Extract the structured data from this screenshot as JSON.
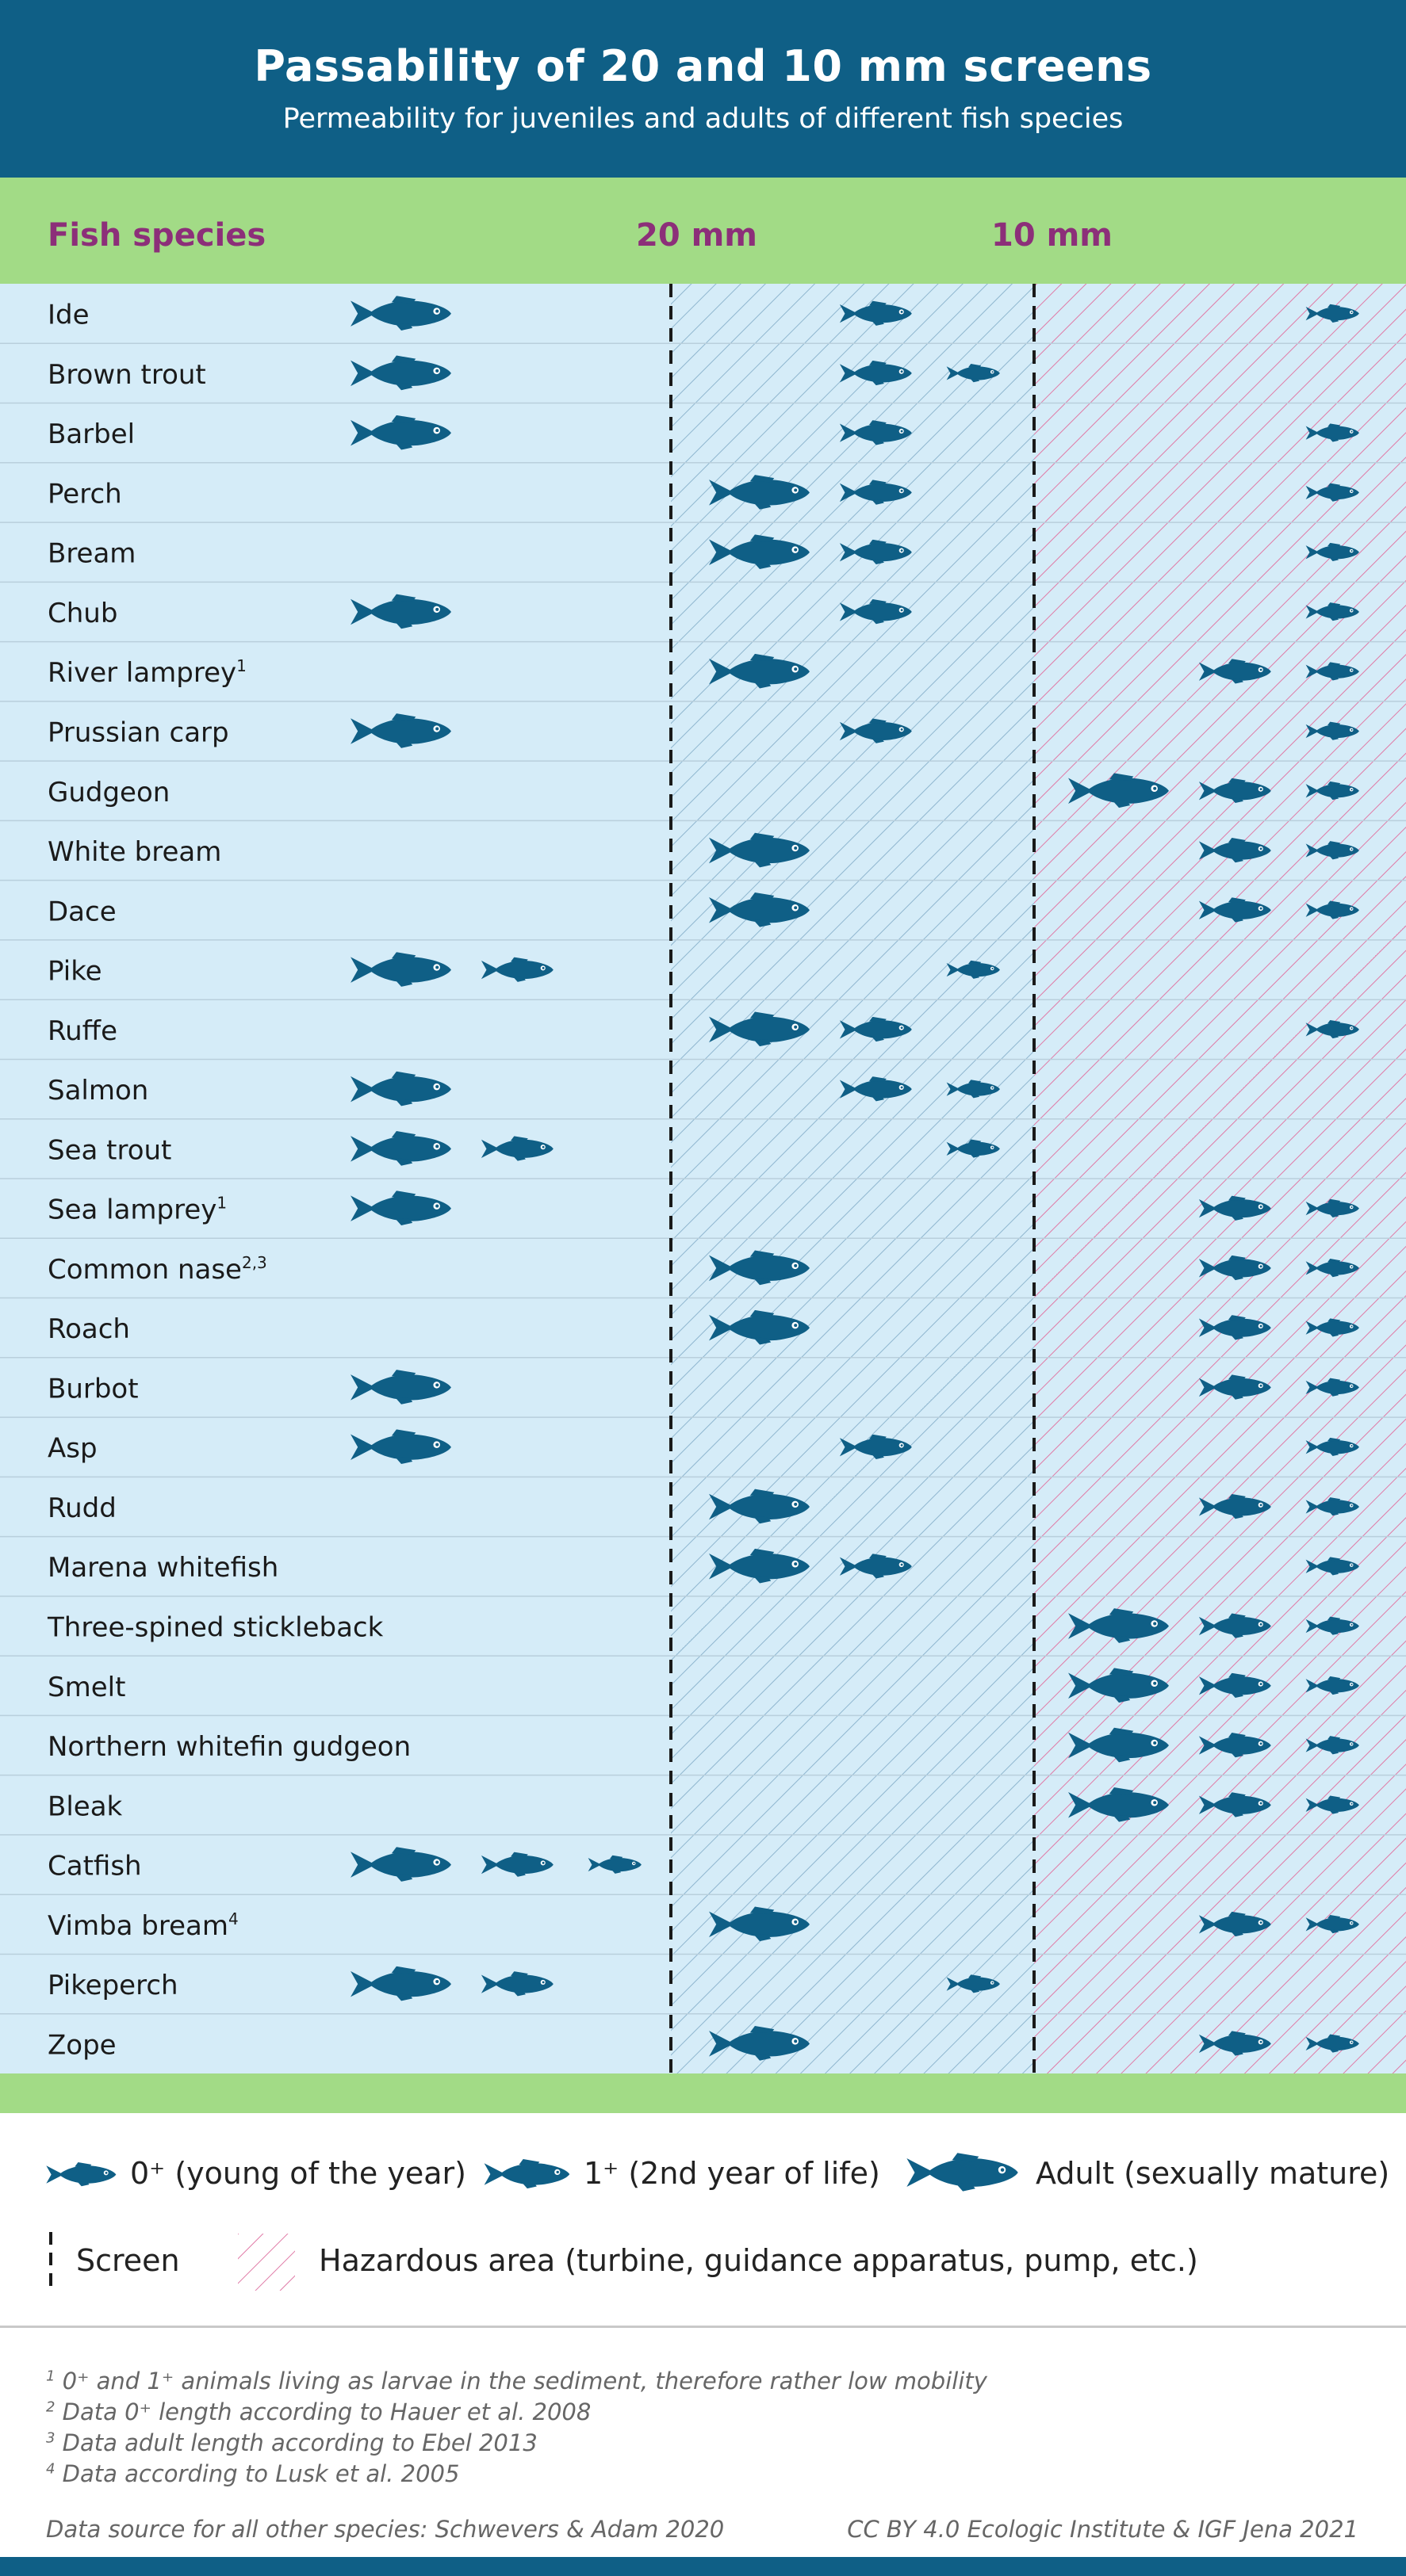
{
  "header": {
    "title": "Passability of 20 and 10 mm screens",
    "subtitle": "Permeability for juveniles and adults of different fish species"
  },
  "columns": {
    "species": "Fish species",
    "screen20": "20 mm",
    "screen10": "10 mm"
  },
  "legend": {
    "stage0": "0⁺ (young of the year)",
    "stage1": "1⁺ (2nd year of life)",
    "adult": "Adult (sexually mature)",
    "screen": "Screen",
    "hazard": "Hazardous area (turbine, guidance apparatus, pump, etc.)"
  },
  "footnotes": {
    "n1": "0⁺ and 1⁺ animals living as larvae in the sediment, therefore rather low mobility",
    "n2": "Data 0⁺ length according to Hauer et al. 2008",
    "n3": "Data adult length according to Ebel 2013",
    "n4": "Data according to Lusk et al. 2005",
    "source": "Data source for all other species: Schwevers & Adam 2020",
    "credit": "CC BY 4.0  Ecologic Institute & IGF Jena 2021"
  },
  "colors": {
    "header_bg": "#0f5f86",
    "band_green": "#a2db86",
    "species_header": "#8c2f79",
    "panel_bg": "#d5ecf8",
    "fish": "#0f5f86",
    "hatch_blue": "#8fb6cf",
    "hatch_pink": "#e07aa6"
  },
  "icons": {
    "fish": "fish-icon",
    "screen": "dashed-line-icon",
    "hazard": "hatched-square-icon"
  },
  "chart_data": {
    "type": "table",
    "zones": [
      "retained by 20 mm screen",
      "passes 20 mm, retained by 10 mm screen",
      "passes 10 mm screen (hazardous area)"
    ],
    "stages": [
      "adult",
      "1+",
      "0+"
    ],
    "rows": [
      {
        "species": "Ide",
        "sup": "",
        "retained_20": [
          "adult"
        ],
        "between": [
          "1+"
        ],
        "passes_10": [
          "0+"
        ]
      },
      {
        "species": "Brown trout",
        "sup": "",
        "retained_20": [
          "adult"
        ],
        "between": [
          "1+",
          "0+"
        ],
        "passes_10": []
      },
      {
        "species": "Barbel",
        "sup": "",
        "retained_20": [
          "adult"
        ],
        "between": [
          "1+"
        ],
        "passes_10": [
          "0+"
        ]
      },
      {
        "species": "Perch",
        "sup": "",
        "retained_20": [],
        "between": [
          "adult",
          "1+"
        ],
        "passes_10": [
          "0+"
        ]
      },
      {
        "species": "Bream",
        "sup": "",
        "retained_20": [],
        "between": [
          "adult",
          "1+"
        ],
        "passes_10": [
          "0+"
        ]
      },
      {
        "species": "Chub",
        "sup": "",
        "retained_20": [
          "adult"
        ],
        "between": [
          "1+"
        ],
        "passes_10": [
          "0+"
        ]
      },
      {
        "species": "River lamprey",
        "sup": "1",
        "retained_20": [],
        "between": [
          "adult"
        ],
        "passes_10": [
          "1+",
          "0+"
        ]
      },
      {
        "species": "Prussian carp",
        "sup": "",
        "retained_20": [
          "adult"
        ],
        "between": [
          "1+"
        ],
        "passes_10": [
          "0+"
        ]
      },
      {
        "species": "Gudgeon",
        "sup": "",
        "retained_20": [],
        "between": [],
        "passes_10": [
          "adult",
          "1+",
          "0+"
        ]
      },
      {
        "species": "White bream",
        "sup": "",
        "retained_20": [],
        "between": [
          "adult"
        ],
        "passes_10": [
          "1+",
          "0+"
        ]
      },
      {
        "species": "Dace",
        "sup": "",
        "retained_20": [],
        "between": [
          "adult"
        ],
        "passes_10": [
          "1+",
          "0+"
        ]
      },
      {
        "species": "Pike",
        "sup": "",
        "retained_20": [
          "adult",
          "1+"
        ],
        "between": [
          "0+"
        ],
        "passes_10": []
      },
      {
        "species": "Ruffe",
        "sup": "",
        "retained_20": [],
        "between": [
          "adult",
          "1+"
        ],
        "passes_10": [
          "0+"
        ]
      },
      {
        "species": "Salmon",
        "sup": "",
        "retained_20": [
          "adult"
        ],
        "between": [
          "1+",
          "0+"
        ],
        "passes_10": []
      },
      {
        "species": "Sea trout",
        "sup": "",
        "retained_20": [
          "adult",
          "1+"
        ],
        "between": [
          "0+"
        ],
        "passes_10": []
      },
      {
        "species": "Sea lamprey",
        "sup": "1",
        "retained_20": [
          "adult"
        ],
        "between": [],
        "passes_10": [
          "1+",
          "0+"
        ]
      },
      {
        "species": "Common nase",
        "sup": "2,3",
        "retained_20": [],
        "between": [
          "adult"
        ],
        "passes_10": [
          "1+",
          "0+"
        ]
      },
      {
        "species": "Roach",
        "sup": "",
        "retained_20": [],
        "between": [
          "adult"
        ],
        "passes_10": [
          "1+",
          "0+"
        ]
      },
      {
        "species": "Burbot",
        "sup": "",
        "retained_20": [
          "adult"
        ],
        "between": [],
        "passes_10": [
          "1+",
          "0+"
        ]
      },
      {
        "species": "Asp",
        "sup": "",
        "retained_20": [
          "adult"
        ],
        "between": [
          "1+"
        ],
        "passes_10": [
          "0+"
        ]
      },
      {
        "species": "Rudd",
        "sup": "",
        "retained_20": [],
        "between": [
          "adult"
        ],
        "passes_10": [
          "1+",
          "0+"
        ]
      },
      {
        "species": "Marena whitefish",
        "sup": "",
        "retained_20": [],
        "between": [
          "adult",
          "1+"
        ],
        "passes_10": [
          "0+"
        ]
      },
      {
        "species": "Three-spined stickleback",
        "sup": "",
        "retained_20": [],
        "between": [],
        "passes_10": [
          "adult",
          "1+",
          "0+"
        ]
      },
      {
        "species": "Smelt",
        "sup": "",
        "retained_20": [],
        "between": [],
        "passes_10": [
          "adult",
          "1+",
          "0+"
        ]
      },
      {
        "species": "Northern whitefin gudgeon",
        "sup": "",
        "retained_20": [],
        "between": [],
        "passes_10": [
          "adult",
          "1+",
          "0+"
        ]
      },
      {
        "species": "Bleak",
        "sup": "",
        "retained_20": [],
        "between": [],
        "passes_10": [
          "adult",
          "1+",
          "0+"
        ]
      },
      {
        "species": "Catfish",
        "sup": "",
        "retained_20": [
          "adult",
          "1+",
          "0+"
        ],
        "between": [],
        "passes_10": []
      },
      {
        "species": "Vimba bream",
        "sup": "4",
        "retained_20": [],
        "between": [
          "adult"
        ],
        "passes_10": [
          "1+",
          "0+"
        ]
      },
      {
        "species": "Pikeperch",
        "sup": "",
        "retained_20": [
          "adult",
          "1+"
        ],
        "between": [
          "0+"
        ],
        "passes_10": []
      },
      {
        "species": "Zope",
        "sup": "",
        "retained_20": [],
        "between": [
          "adult"
        ],
        "passes_10": [
          "1+",
          "0+"
        ]
      }
    ]
  }
}
